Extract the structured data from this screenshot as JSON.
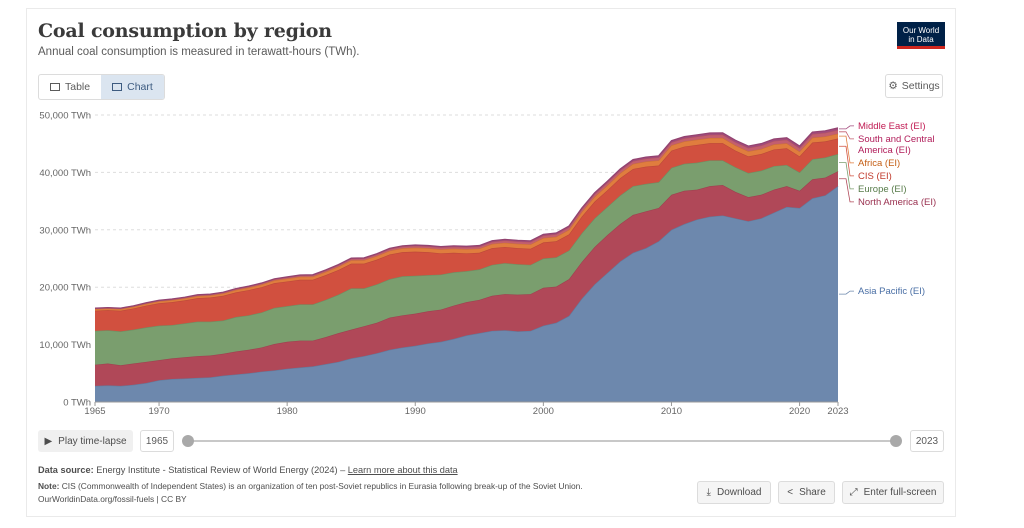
{
  "header": {
    "title": "Coal consumption by region",
    "subtitle": "Annual coal consumption is measured in terawatt-hours (TWh).",
    "logo_line1": "Our World",
    "logo_line2": "in Data"
  },
  "tabs": {
    "table": "Table",
    "chart": "Chart"
  },
  "settings_label": "Settings",
  "chart_data": {
    "type": "area",
    "stacked": true,
    "title": "Coal consumption by region",
    "xlabel": "",
    "ylabel": "",
    "ylim": [
      0,
      50000
    ],
    "y_ticks": [
      0,
      10000,
      20000,
      30000,
      40000,
      50000
    ],
    "y_tick_labels": [
      "0 TWh",
      "10,000 TWh",
      "20,000 TWh",
      "30,000 TWh",
      "40,000 TWh",
      "50,000 TWh"
    ],
    "x_ticks": [
      1965,
      1970,
      1980,
      1990,
      2000,
      2010,
      2020,
      2023
    ],
    "x_tick_labels": [
      "1965",
      "1970",
      "1980",
      "1990",
      "2000",
      "2010",
      "2020",
      "2023"
    ],
    "x": [
      1965,
      1966,
      1967,
      1968,
      1969,
      1970,
      1971,
      1972,
      1973,
      1974,
      1975,
      1976,
      1977,
      1978,
      1979,
      1980,
      1981,
      1982,
      1983,
      1984,
      1985,
      1986,
      1987,
      1988,
      1989,
      1990,
      1991,
      1992,
      1993,
      1994,
      1995,
      1996,
      1997,
      1998,
      1999,
      2000,
      2001,
      2002,
      2003,
      2004,
      2005,
      2006,
      2007,
      2008,
      2009,
      2010,
      2011,
      2012,
      2013,
      2014,
      2015,
      2016,
      2017,
      2018,
      2019,
      2020,
      2021,
      2022,
      2023
    ],
    "series": [
      {
        "name": "Asia Pacific (EI)",
        "color": "#6d88ad",
        "label_color": "#4a6fa5",
        "values": [
          2800,
          2900,
          2800,
          3000,
          3300,
          3800,
          4000,
          4100,
          4200,
          4300,
          4600,
          4800,
          5000,
          5300,
          5500,
          5800,
          6000,
          6200,
          6600,
          7000,
          7600,
          8000,
          8500,
          9100,
          9500,
          9800,
          10200,
          10500,
          11000,
          11600,
          12000,
          12400,
          12500,
          12300,
          12400,
          13300,
          13800,
          15000,
          18000,
          20500,
          22500,
          24500,
          26000,
          26800,
          28000,
          30000,
          31000,
          31800,
          32300,
          32500,
          32000,
          31500,
          32000,
          33000,
          34000,
          33800,
          35500,
          36000,
          37600
        ]
      },
      {
        "name": "North America (EI)",
        "color": "#b04858",
        "label_color": "#9a3150",
        "values": [
          3700,
          3800,
          3600,
          3700,
          3700,
          3500,
          3600,
          3700,
          3800,
          3800,
          3800,
          4000,
          4100,
          4200,
          4600,
          4700,
          4700,
          4500,
          4700,
          5000,
          5000,
          5200,
          5300,
          5600,
          5600,
          5600,
          5600,
          5600,
          5800,
          5800,
          5800,
          6100,
          6300,
          6400,
          6400,
          6600,
          6300,
          6400,
          6400,
          6500,
          6600,
          6500,
          6600,
          6400,
          5800,
          6100,
          5800,
          5200,
          5300,
          5300,
          4600,
          4200,
          4100,
          4000,
          3600,
          3000,
          3300,
          3100,
          2600
        ]
      },
      {
        "name": "Europe (EI)",
        "color": "#7a9e6e",
        "label_color": "#577b49",
        "values": [
          5900,
          5800,
          5900,
          5900,
          6000,
          6000,
          5800,
          5900,
          6000,
          5900,
          5800,
          6000,
          6000,
          6100,
          6300,
          6200,
          6300,
          6300,
          6500,
          6700,
          7200,
          6600,
          6700,
          6700,
          6800,
          6600,
          6300,
          6100,
          5800,
          5400,
          5300,
          5400,
          5400,
          5300,
          5100,
          5100,
          5100,
          5000,
          5000,
          5000,
          4900,
          5000,
          5000,
          4800,
          4500,
          4700,
          4700,
          4700,
          4500,
          4300,
          4300,
          4200,
          4200,
          4100,
          3700,
          3200,
          3500,
          3500,
          3000
        ]
      },
      {
        "name": "CIS (EI)",
        "color": "#d1503f",
        "label_color": "#c0392b",
        "values": [
          3500,
          3500,
          3600,
          3700,
          3800,
          3900,
          4000,
          4000,
          4100,
          4200,
          4300,
          4300,
          4400,
          4400,
          4300,
          4300,
          4300,
          4300,
          4300,
          4300,
          4300,
          4300,
          4300,
          4300,
          4200,
          4200,
          4000,
          3700,
          3400,
          3100,
          2900,
          2900,
          2800,
          2800,
          2800,
          2800,
          2800,
          2800,
          2900,
          2900,
          2900,
          3000,
          3000,
          3000,
          2900,
          3000,
          3000,
          3100,
          3000,
          3000,
          2900,
          2900,
          2900,
          2900,
          2900,
          2800,
          2900,
          2800,
          2700
        ]
      },
      {
        "name": "Africa (EI)",
        "color": "#e07d3e",
        "label_color": "#c45e14",
        "values": [
          300,
          300,
          300,
          300,
          320,
          340,
          350,
          360,
          370,
          380,
          400,
          420,
          440,
          460,
          480,
          500,
          520,
          540,
          560,
          580,
          600,
          620,
          640,
          660,
          680,
          700,
          700,
          700,
          710,
          720,
          730,
          740,
          750,
          760,
          770,
          780,
          800,
          800,
          820,
          850,
          850,
          870,
          880,
          900,
          900,
          920,
          900,
          900,
          900,
          920,
          900,
          880,
          880,
          880,
          880,
          850,
          860,
          860,
          850
        ]
      },
      {
        "name": "South and Central America (EI)",
        "color": "#c35e6f",
        "label_color": "#b11d5a",
        "values": [
          100,
          100,
          110,
          110,
          120,
          130,
          130,
          140,
          150,
          150,
          160,
          170,
          180,
          190,
          200,
          210,
          220,
          230,
          240,
          250,
          260,
          270,
          280,
          290,
          300,
          310,
          320,
          330,
          340,
          350,
          360,
          380,
          400,
          410,
          420,
          430,
          440,
          450,
          460,
          470,
          480,
          490,
          500,
          510,
          520,
          530,
          540,
          550,
          560,
          570,
          580,
          590,
          600,
          610,
          620,
          600,
          620,
          640,
          650
        ]
      },
      {
        "name": "Middle East (EI)",
        "color": "#a24a7c",
        "label_color": "#c01a52",
        "values": [
          50,
          50,
          50,
          50,
          50,
          60,
          60,
          60,
          60,
          60,
          70,
          70,
          70,
          80,
          80,
          90,
          90,
          100,
          100,
          110,
          110,
          120,
          120,
          130,
          130,
          140,
          150,
          150,
          160,
          160,
          170,
          180,
          180,
          190,
          190,
          200,
          200,
          210,
          210,
          220,
          230,
          240,
          250,
          260,
          270,
          280,
          290,
          300,
          300,
          310,
          320,
          320,
          330,
          330,
          340,
          340,
          350,
          350,
          360
        ]
      }
    ],
    "legend": "right"
  },
  "controls": {
    "play_label": "Play time-lapse",
    "start_year": "1965",
    "end_year": "2023"
  },
  "footer": {
    "source_label": "Data source:",
    "source_text": "Energy Institute - Statistical Review of World Energy (2024) – ",
    "source_link": "Learn more about this data",
    "note_label": "Note:",
    "note_text": "CIS (Commonwealth of Independent States) is an organization of ten post-Soviet republics in Eurasia following break-up of the Soviet Union.",
    "license": "OurWorldinData.org/fossil-fuels | CC BY"
  },
  "actions": {
    "download": "Download",
    "share": "Share",
    "fullscreen": "Enter full-screen"
  }
}
